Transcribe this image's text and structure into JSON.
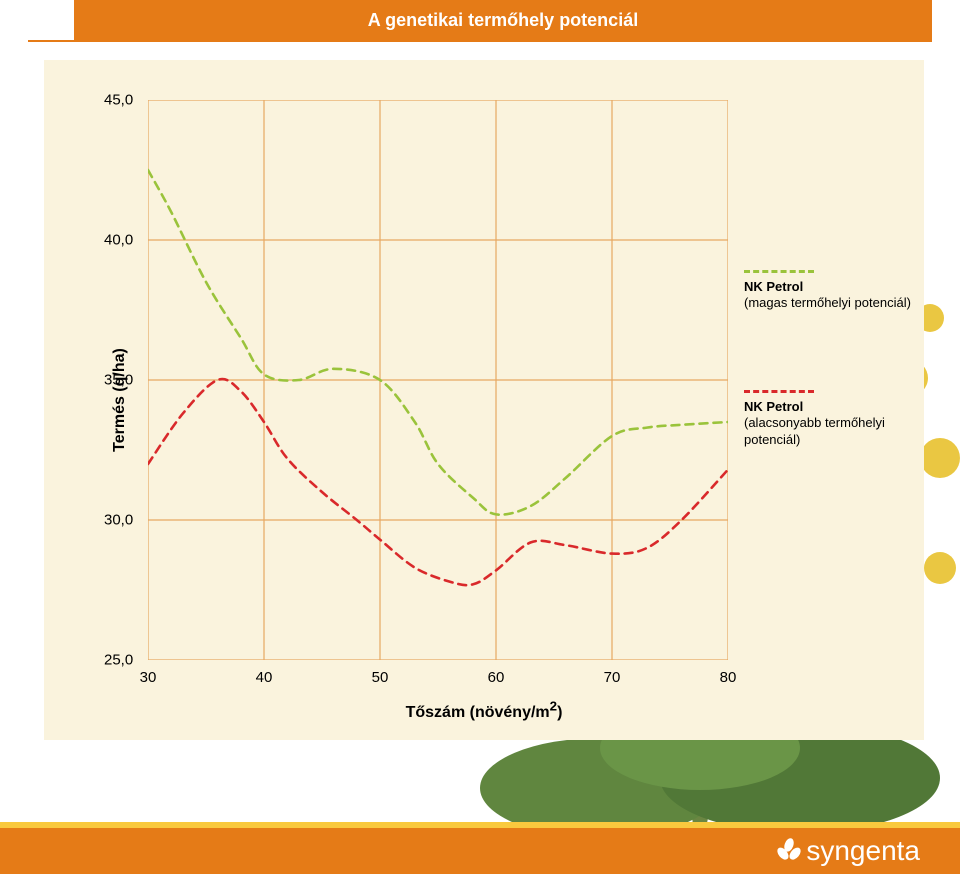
{
  "header": {
    "title": "A genetikai termőhely potenciál"
  },
  "chart": {
    "type": "line",
    "background_color": "#faf3dd",
    "grid_color": "#e7a862",
    "grid_stroke": 1.2,
    "yaxis": {
      "label": "Termés (q/ha)",
      "min": 25.0,
      "max": 45.0,
      "ticks": [
        25.0,
        30.0,
        35.0,
        40.0,
        45.0
      ],
      "tick_labels": [
        "25,0",
        "30,0",
        "35,0",
        "40,0",
        "45,0"
      ],
      "label_fontsize": 16,
      "label_weight": "bold"
    },
    "xaxis": {
      "label": "Tőszám (növény/m²)",
      "label_html": "Tőszám (növény/m<sup>2</sup>)",
      "min": 30,
      "max": 80,
      "ticks": [
        30,
        40,
        50,
        60,
        70,
        80
      ],
      "tick_labels": [
        "30",
        "40",
        "50",
        "60",
        "70",
        "80"
      ],
      "label_fontsize": 16,
      "label_weight": "bold"
    },
    "series": [
      {
        "name": "NK Petrol (magas termőhelyi potenciál)",
        "legend_title": "NK Petrol",
        "legend_sub": "(magas termőhelyi potenciál)",
        "color": "#9ac33b",
        "dash": "8,6",
        "line_width": 2.6,
        "x": [
          30,
          32,
          35,
          38,
          40,
          43,
          46,
          50,
          53,
          55,
          58,
          60,
          63,
          66,
          70,
          73,
          76,
          80
        ],
        "y": [
          42.5,
          41.0,
          38.5,
          36.5,
          35.2,
          35.0,
          35.4,
          35.0,
          33.5,
          32.0,
          30.8,
          30.2,
          30.5,
          31.5,
          33.0,
          33.3,
          33.4,
          33.5
        ]
      },
      {
        "name": "NK Petrol (alacsonyabb termőhelyi potenciál)",
        "legend_title": "NK Petrol",
        "legend_sub": "(alacsonyabb termőhelyi potenciál)",
        "color": "#d9292b",
        "dash": "8,6",
        "line_width": 2.6,
        "x": [
          30,
          33,
          36,
          38,
          40,
          42,
          45,
          48,
          50,
          53,
          56,
          58,
          60,
          63,
          66,
          70,
          73,
          76,
          80
        ],
        "y": [
          32.0,
          33.8,
          35.0,
          34.6,
          33.5,
          32.2,
          31.0,
          30.0,
          29.3,
          28.3,
          27.8,
          27.7,
          28.2,
          29.2,
          29.1,
          28.8,
          29.0,
          30.0,
          31.8
        ]
      }
    ],
    "legend": {
      "y_positions": [
        0.5,
        0.64
      ]
    }
  },
  "footer": {
    "logo_text": "syngenta"
  },
  "colors": {
    "header_bg": "#e57b17",
    "footer_bg": "#e57b17",
    "footer_band": "#f9c93e",
    "page_bg": "#ffffff"
  }
}
